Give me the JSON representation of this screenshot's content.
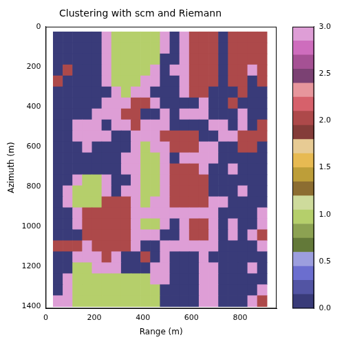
{
  "chart_data": {
    "type": "heatmap",
    "title": "Clustering with scm and Riemann",
    "x_label": "Range (m)",
    "y_label": "Azimuth (m)",
    "xlim": [
      0,
      950
    ],
    "xticks": [
      0,
      200,
      400,
      600,
      800
    ],
    "ylim": [
      1410,
      0
    ],
    "yticks": [
      0,
      200,
      400,
      600,
      800,
      1000,
      1200,
      1400
    ],
    "grid": false,
    "x": [
      50,
      90,
      130,
      170,
      210,
      250,
      290,
      330,
      370,
      410,
      450,
      490,
      530,
      570,
      610,
      650,
      690,
      730,
      770,
      810,
      850,
      890
    ],
    "y": [
      52,
      107,
      162,
      217,
      272,
      327,
      382,
      437,
      492,
      547,
      602,
      657,
      712,
      767,
      822,
      877,
      932,
      987,
      1042,
      1097,
      1152,
      1207,
      1262,
      1317,
      1372
    ],
    "cells": [
      [
        0,
        0,
        0,
        0,
        0,
        3,
        1,
        1,
        1,
        1,
        1,
        3,
        0,
        3,
        2,
        2,
        2,
        0,
        2,
        2,
        2,
        2
      ],
      [
        0,
        0,
        0,
        0,
        0,
        3,
        1,
        1,
        1,
        1,
        1,
        3,
        0,
        3,
        2,
        2,
        2,
        0,
        2,
        2,
        2,
        2
      ],
      [
        0,
        0,
        0,
        0,
        0,
        3,
        1,
        1,
        1,
        1,
        1,
        0,
        0,
        3,
        2,
        2,
        2,
        0,
        2,
        2,
        2,
        2
      ],
      [
        0,
        2,
        0,
        0,
        0,
        3,
        1,
        1,
        1,
        1,
        3,
        0,
        3,
        3,
        2,
        2,
        2,
        0,
        2,
        2,
        3,
        2
      ],
      [
        2,
        0,
        0,
        0,
        0,
        3,
        1,
        1,
        1,
        3,
        3,
        0,
        0,
        3,
        2,
        2,
        2,
        0,
        2,
        2,
        0,
        2
      ],
      [
        0,
        0,
        0,
        0,
        0,
        0,
        3,
        1,
        3,
        3,
        0,
        0,
        0,
        3,
        2,
        2,
        0,
        0,
        0,
        2,
        0,
        0
      ],
      [
        0,
        0,
        0,
        0,
        0,
        3,
        3,
        3,
        2,
        2,
        3,
        0,
        0,
        0,
        0,
        3,
        0,
        0,
        2,
        0,
        0,
        0
      ],
      [
        0,
        0,
        0,
        0,
        3,
        3,
        3,
        2,
        2,
        0,
        0,
        3,
        0,
        3,
        3,
        3,
        0,
        0,
        0,
        3,
        0,
        0
      ],
      [
        0,
        0,
        3,
        3,
        3,
        0,
        3,
        3,
        2,
        3,
        3,
        3,
        0,
        0,
        0,
        0,
        3,
        3,
        0,
        3,
        0,
        2
      ],
      [
        0,
        0,
        3,
        3,
        3,
        3,
        0,
        0,
        3,
        3,
        3,
        2,
        2,
        2,
        2,
        0,
        0,
        3,
        3,
        2,
        2,
        2
      ],
      [
        0,
        0,
        0,
        3,
        0,
        0,
        0,
        0,
        3,
        1,
        3,
        3,
        2,
        2,
        2,
        3,
        3,
        0,
        0,
        2,
        2,
        0
      ],
      [
        0,
        0,
        0,
        0,
        0,
        0,
        0,
        3,
        3,
        1,
        1,
        3,
        0,
        3,
        3,
        3,
        3,
        0,
        0,
        0,
        0,
        0
      ],
      [
        0,
        0,
        0,
        0,
        0,
        0,
        0,
        3,
        3,
        1,
        1,
        3,
        2,
        2,
        2,
        3,
        0,
        0,
        3,
        0,
        0,
        0
      ],
      [
        0,
        0,
        3,
        1,
        1,
        3,
        0,
        0,
        3,
        1,
        1,
        3,
        2,
        2,
        2,
        2,
        0,
        0,
        0,
        0,
        0,
        0
      ],
      [
        0,
        3,
        1,
        1,
        1,
        3,
        0,
        3,
        3,
        1,
        1,
        3,
        2,
        2,
        2,
        2,
        0,
        0,
        0,
        3,
        0,
        0
      ],
      [
        0,
        3,
        1,
        1,
        1,
        2,
        2,
        2,
        3,
        1,
        3,
        3,
        2,
        2,
        2,
        2,
        3,
        3,
        0,
        0,
        0,
        0
      ],
      [
        0,
        0,
        3,
        2,
        2,
        2,
        2,
        2,
        3,
        3,
        3,
        3,
        3,
        3,
        3,
        3,
        3,
        0,
        0,
        0,
        0,
        3
      ],
      [
        0,
        0,
        3,
        2,
        2,
        2,
        2,
        2,
        3,
        1,
        1,
        3,
        0,
        3,
        2,
        2,
        3,
        0,
        3,
        0,
        0,
        3
      ],
      [
        0,
        0,
        0,
        2,
        2,
        2,
        2,
        2,
        3,
        3,
        3,
        0,
        0,
        3,
        2,
        2,
        3,
        0,
        3,
        0,
        3,
        2
      ],
      [
        2,
        2,
        2,
        3,
        2,
        2,
        2,
        2,
        3,
        0,
        0,
        3,
        3,
        3,
        3,
        3,
        3,
        0,
        0,
        0,
        0,
        3
      ],
      [
        0,
        0,
        3,
        3,
        3,
        2,
        3,
        0,
        0,
        2,
        0,
        3,
        0,
        0,
        0,
        3,
        0,
        0,
        0,
        0,
        0,
        0
      ],
      [
        0,
        0,
        1,
        1,
        3,
        3,
        3,
        0,
        0,
        0,
        3,
        3,
        0,
        0,
        0,
        3,
        3,
        0,
        0,
        0,
        3,
        0
      ],
      [
        0,
        3,
        1,
        1,
        1,
        1,
        1,
        1,
        1,
        1,
        3,
        3,
        0,
        0,
        0,
        3,
        3,
        0,
        0,
        0,
        0,
        0
      ],
      [
        0,
        3,
        1,
        1,
        1,
        1,
        1,
        1,
        1,
        1,
        1,
        0,
        0,
        0,
        0,
        3,
        3,
        0,
        0,
        0,
        0,
        3
      ],
      [
        3,
        3,
        1,
        1,
        1,
        1,
        1,
        1,
        1,
        1,
        1,
        0,
        0,
        0,
        0,
        3,
        3,
        0,
        0,
        0,
        3,
        2
      ]
    ],
    "colorbar": {
      "range": [
        0,
        3
      ],
      "ticks": [
        {
          "value": 0,
          "label": "0.0"
        },
        {
          "value": 0.5,
          "label": "0.5"
        },
        {
          "value": 1,
          "label": "1.0"
        },
        {
          "value": 1.5,
          "label": "1.5"
        },
        {
          "value": 2,
          "label": "2.0"
        },
        {
          "value": 2.5,
          "label": "2.5"
        },
        {
          "value": 3,
          "label": "3.0"
        }
      ],
      "colors": [
        "#393b79",
        "#5254a3",
        "#6b6ecf",
        "#9c9ede",
        "#637939",
        "#8ca252",
        "#b5cf6b",
        "#cedb9c",
        "#8c6d31",
        "#bd9e39",
        "#e7ba52",
        "#e7cb94",
        "#843c39",
        "#ad494a",
        "#d6616b",
        "#e7969c",
        "#7b4173",
        "#a55194",
        "#ce6dbd",
        "#de9ed6"
      ]
    }
  }
}
